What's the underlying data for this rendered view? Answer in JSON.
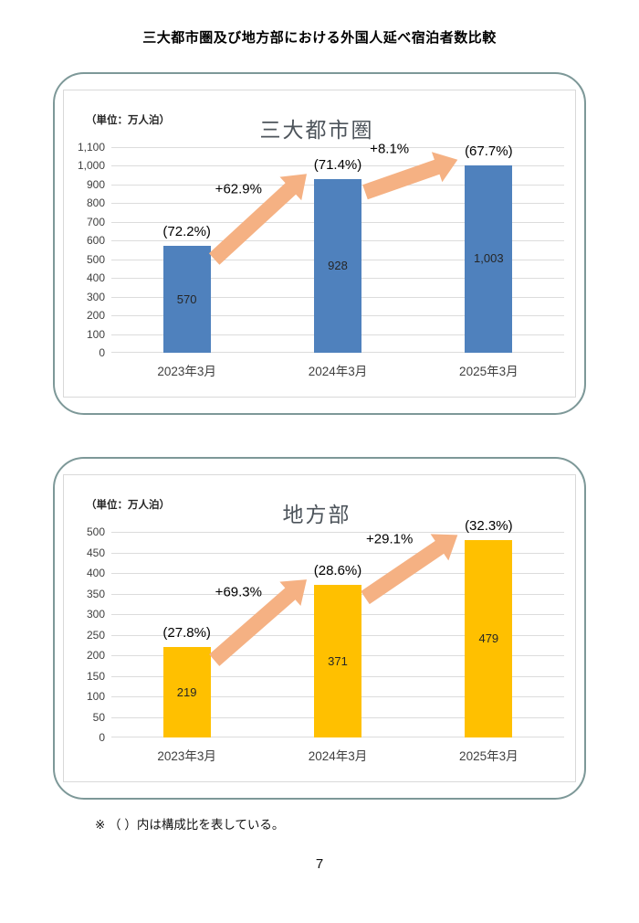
{
  "page": {
    "title": "三大都市圏及び地方部における外国人延べ宿泊者数比較",
    "footnote": "※ （ ）内は構成比を表している。",
    "page_number": "7"
  },
  "chart_data": [
    {
      "type": "bar",
      "title": "三大都市圏",
      "unit_label": "（単位：万人泊）",
      "categories": [
        "2023年3月",
        "2024年3月",
        "2025年3月"
      ],
      "values": [
        570,
        928,
        1003
      ],
      "value_labels": [
        "570",
        "928",
        "1,003"
      ],
      "share_labels": [
        "(72.2%)",
        "(71.4%)",
        "(67.7%)"
      ],
      "growth_labels": [
        "+62.9%",
        "+8.1%"
      ],
      "ylim": [
        0,
        1100
      ],
      "y_tick_step": 100,
      "y_tick_labels": [
        "0",
        "100",
        "200",
        "300",
        "400",
        "500",
        "600",
        "700",
        "800",
        "900",
        "1,000",
        "1,100"
      ],
      "bar_color": "#4f81bd",
      "arrow_color": "#f5b183",
      "grid": true,
      "legend": false
    },
    {
      "type": "bar",
      "title": "地方部",
      "unit_label": "（単位：万人泊）",
      "categories": [
        "2023年3月",
        "2024年3月",
        "2025年3月"
      ],
      "values": [
        219,
        371,
        479
      ],
      "value_labels": [
        "219",
        "371",
        "479"
      ],
      "share_labels": [
        "(27.8%)",
        "(28.6%)",
        "(32.3%)"
      ],
      "growth_labels": [
        "+69.3%",
        "+29.1%"
      ],
      "ylim": [
        0,
        500
      ],
      "y_tick_step": 50,
      "y_tick_labels": [
        "0",
        "50",
        "100",
        "150",
        "200",
        "250",
        "300",
        "350",
        "400",
        "450",
        "500"
      ],
      "bar_color": "#ffc000",
      "arrow_color": "#f5b183",
      "grid": true,
      "legend": false
    }
  ]
}
